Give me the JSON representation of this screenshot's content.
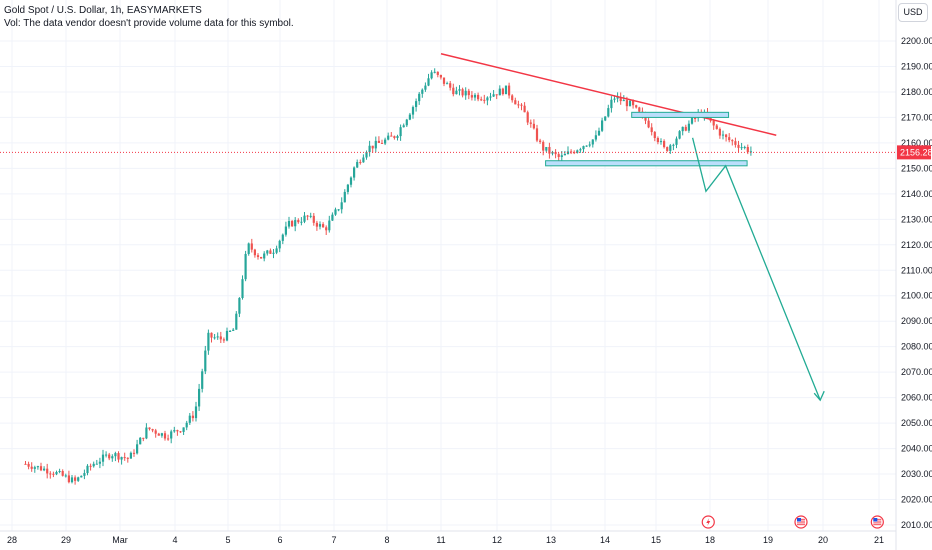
{
  "legend": {
    "title": "Gold Spot / U.S. Dollar, 1h, EASYMARKETS",
    "volume_note": "Vol: The data vendor doesn't provide volume data for this symbol."
  },
  "currency_button": "USD",
  "colors": {
    "up": "#26a69a",
    "down": "#ef5350",
    "trendline": "#f23645",
    "projection": "#22ab94",
    "zone_fill": "#bbdefb",
    "zone_border": "#22ab94",
    "last_price_bg": "#f23645"
  },
  "chart_data": {
    "type": "candlestick",
    "y_axis": {
      "min": 2010,
      "max": 2200,
      "ticks": [
        "2010.00",
        "2020.00",
        "2030.00",
        "2040.00",
        "2050.00",
        "2060.00",
        "2070.00",
        "2080.00",
        "2090.00",
        "2100.00",
        "2110.00",
        "2120.00",
        "2130.00",
        "2140.00",
        "2150.00",
        "2160.00",
        "2170.00",
        "2180.00",
        "2190.00",
        "2200.00"
      ]
    },
    "x_axis": {
      "labels": [
        "28",
        "29",
        "Mar",
        "4",
        "5",
        "6",
        "7",
        "8",
        "11",
        "12",
        "13",
        "14",
        "15",
        "18",
        "19",
        "20",
        "21"
      ]
    },
    "last_price": "2156.28",
    "price_path": [
      [
        "28",
        2034
      ],
      [
        "28",
        2031
      ],
      [
        "29",
        2027
      ],
      [
        "29",
        2034
      ],
      [
        "29",
        2038
      ],
      [
        "Mar",
        2036
      ],
      [
        "Mar",
        2048
      ],
      [
        "Mar",
        2045
      ],
      [
        "4",
        2048
      ],
      [
        "4",
        2054
      ],
      [
        "4",
        2084
      ],
      [
        "4",
        2083
      ],
      [
        "5",
        2087
      ],
      [
        "5",
        2120
      ],
      [
        "5",
        2115
      ],
      [
        "5",
        2118
      ],
      [
        "6",
        2128
      ],
      [
        "6",
        2131
      ],
      [
        "6",
        2126
      ],
      [
        "7",
        2136
      ],
      [
        "7",
        2150
      ],
      [
        "7",
        2158
      ],
      [
        "7",
        2160
      ],
      [
        "8",
        2163
      ],
      [
        "8",
        2175
      ],
      [
        "8",
        2188
      ],
      [
        "11",
        2180
      ],
      [
        "11",
        2178
      ],
      [
        "12",
        2181
      ],
      [
        "12",
        2172
      ],
      [
        "12",
        2158
      ],
      [
        "13",
        2154
      ],
      [
        "13",
        2158
      ],
      [
        "13",
        2162
      ],
      [
        "14",
        2178
      ],
      [
        "14",
        2175
      ],
      [
        "14",
        2168
      ],
      [
        "15",
        2157
      ],
      [
        "15",
        2165
      ],
      [
        "15",
        2172
      ],
      [
        "18",
        2162
      ],
      [
        "18",
        2156.28
      ]
    ],
    "drawings": {
      "trendline": [
        [
          "11",
          2195
        ],
        [
          "19",
          2163
        ]
      ],
      "resistance_zone": [
        [
          "15",
          2170
        ],
        [
          "18",
          2172
        ]
      ],
      "support_zone": [
        [
          "13",
          2151
        ],
        [
          "19",
          2153
        ]
      ],
      "projection_path": [
        [
          "18",
          2162
        ],
        [
          "18",
          2141
        ],
        [
          "19",
          2151
        ],
        [
          "20",
          2059
        ]
      ]
    },
    "events": [
      "flash-event",
      "us-calendar-event",
      "us-calendar-event"
    ]
  }
}
